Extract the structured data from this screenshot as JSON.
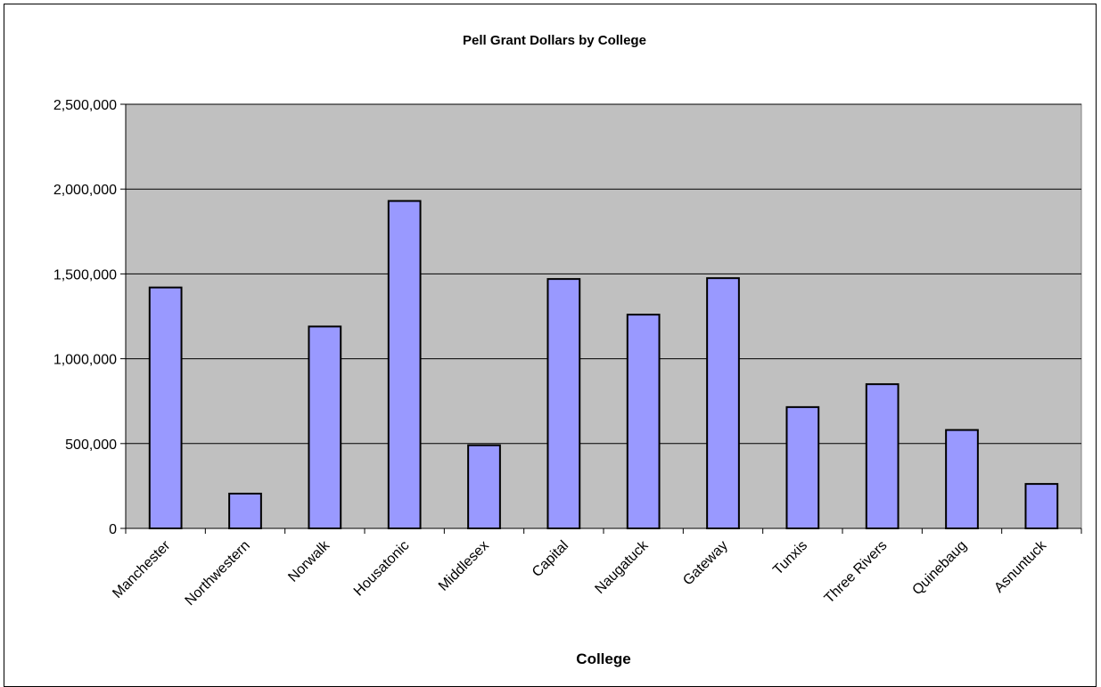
{
  "chart_data": {
    "type": "bar",
    "title": "Pell Grant Dollars by College",
    "xlabel": "College",
    "ylabel": "",
    "categories": [
      "Manchester",
      "Northwestern",
      "Norwalk",
      "Housatonic",
      "Middlesex",
      "Capital",
      "Naugatuck",
      "Gateway",
      "Tunxis",
      "Three Rivers",
      "Quinebaug",
      "Asnuntuck"
    ],
    "values": [
      1420000,
      205000,
      1190000,
      1930000,
      490000,
      1470000,
      1260000,
      1475000,
      715000,
      850000,
      580000,
      262000
    ],
    "ylim": [
      0,
      2500000
    ],
    "yticks": [
      0,
      500000,
      1000000,
      1500000,
      2000000,
      2500000
    ],
    "ytick_labels": [
      "0",
      "500,000",
      "1,000,000",
      "1,500,000",
      "2,000,000",
      "2,500,000"
    ],
    "grid": true,
    "legend": "none",
    "colors": {
      "bar_fill": "#9999ff",
      "bar_stroke": "#000000",
      "plot_background": "#c0c0c0"
    }
  }
}
